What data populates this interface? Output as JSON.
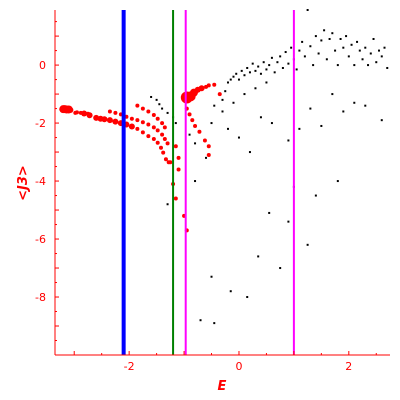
{
  "chart_data": {
    "type": "scatter",
    "title": "",
    "xlabel": "E",
    "ylabel": "<J3>",
    "xlim": [
      -3.35,
      2.75
    ],
    "ylim": [
      -10,
      1.9
    ],
    "x_ticks": [
      -2,
      0,
      2
    ],
    "y_ticks": [
      0,
      -2,
      -4,
      -6,
      -8
    ],
    "x_tick_labels": [
      "-2",
      "0",
      "2"
    ],
    "y_tick_labels": [
      "0",
      "-2",
      "-4",
      "-6",
      "-8"
    ],
    "grid": false,
    "axes_color": "#ff0000",
    "vertical_lines": [
      {
        "x": -2.1,
        "color": "#0000ff"
      },
      {
        "x": -1.2,
        "color": "#008000"
      },
      {
        "x": -0.97,
        "color": "#ff00ff"
      },
      {
        "x": 1.0,
        "color": "#ff00ff"
      }
    ],
    "series": [
      {
        "color": "#ff0000",
        "points": [
          [
            -3.2,
            -1.52,
            4
          ],
          [
            -3.17,
            -1.52,
            4
          ],
          [
            -3.14,
            -1.53,
            4
          ],
          [
            -3.1,
            -1.53,
            4
          ],
          [
            -3.07,
            -1.55,
            3
          ],
          [
            -2.98,
            -1.65,
            2
          ],
          [
            -2.95,
            -1.63,
            2
          ],
          [
            -2.88,
            -1.65,
            2
          ],
          [
            -2.82,
            -1.67,
            3
          ],
          [
            -2.75,
            -1.68,
            2
          ],
          [
            -2.72,
            -1.73,
            3
          ],
          [
            -2.6,
            -1.82,
            3
          ],
          [
            -2.52,
            -1.85,
            3
          ],
          [
            -2.45,
            -1.87,
            3
          ],
          [
            -2.35,
            -1.9,
            3
          ],
          [
            -2.25,
            -1.95,
            3
          ],
          [
            -2.15,
            -2.0,
            3
          ],
          [
            -2.05,
            -2.05,
            3
          ],
          [
            -1.95,
            -2.12,
            3
          ],
          [
            -1.85,
            -2.2,
            2
          ],
          [
            -1.75,
            -2.32,
            2
          ],
          [
            -1.65,
            -2.45,
            2
          ],
          [
            -1.55,
            -2.55,
            2
          ],
          [
            -1.48,
            -2.68,
            2
          ],
          [
            -1.42,
            -2.85,
            2
          ],
          [
            -1.38,
            -3.02,
            2
          ],
          [
            -1.33,
            -3.25,
            2
          ],
          [
            -1.28,
            -3.35,
            2
          ],
          [
            -1.25,
            -3.35,
            2
          ],
          [
            -2.35,
            -1.6,
            2
          ],
          [
            -2.25,
            -1.65,
            2
          ],
          [
            -2.15,
            -1.7,
            2
          ],
          [
            -2.05,
            -1.78,
            2
          ],
          [
            -1.95,
            -1.85,
            2
          ],
          [
            -1.85,
            -1.9,
            2
          ],
          [
            -1.75,
            -1.97,
            2
          ],
          [
            -1.65,
            -2.05,
            2
          ],
          [
            -1.55,
            -2.15,
            2
          ],
          [
            -1.48,
            -2.25,
            2
          ],
          [
            -1.4,
            -2.4,
            2
          ],
          [
            -1.35,
            -2.55,
            2
          ],
          [
            -1.3,
            -2.7,
            2
          ],
          [
            -1.85,
            -1.4,
            2
          ],
          [
            -1.75,
            -1.5,
            2
          ],
          [
            -1.65,
            -1.6,
            2
          ],
          [
            -1.55,
            -1.72,
            2
          ],
          [
            -1.48,
            -1.85,
            2
          ],
          [
            -1.4,
            -2.0,
            2
          ],
          [
            -1.35,
            -2.15,
            2
          ],
          [
            -0.95,
            -1.12,
            6
          ],
          [
            -0.88,
            -1.08,
            5
          ],
          [
            -0.82,
            -0.95,
            4
          ],
          [
            -0.75,
            -0.85,
            3
          ],
          [
            -0.68,
            -0.8,
            3
          ],
          [
            -0.6,
            -0.75,
            2
          ],
          [
            -0.55,
            -0.7,
            2
          ],
          [
            -0.45,
            -0.68,
            2
          ],
          [
            -0.95,
            -1.5,
            2
          ],
          [
            -0.9,
            -1.7,
            2
          ],
          [
            -0.85,
            -1.9,
            2
          ],
          [
            -0.8,
            -2.1,
            2
          ],
          [
            -0.72,
            -2.3,
            2
          ],
          [
            -0.62,
            -2.6,
            2
          ],
          [
            -0.55,
            -2.8,
            2
          ],
          [
            -0.55,
            -3.1,
            2
          ],
          [
            -1.15,
            -2.8,
            2
          ],
          [
            -1.1,
            -3.2,
            2
          ],
          [
            -1.1,
            -3.6,
            2
          ],
          [
            -1.2,
            -4.1,
            2
          ],
          [
            -1.15,
            -4.6,
            2
          ],
          [
            -1.0,
            -5.2,
            2
          ],
          [
            -0.95,
            -5.7,
            2
          ],
          [
            -0.35,
            -1.0,
            2
          ]
        ]
      },
      {
        "color": "#000000",
        "points": [
          [
            -1.6,
            -1.1
          ],
          [
            -1.5,
            -1.2
          ],
          [
            -1.45,
            -1.35
          ],
          [
            -1.4,
            -1.5
          ],
          [
            -1.3,
            -1.65
          ],
          [
            -1.2,
            -1.8
          ],
          [
            -1.15,
            -2.0
          ],
          [
            -0.9,
            -2.4
          ],
          [
            -0.8,
            -2.7
          ],
          [
            -0.6,
            -3.2
          ],
          [
            -0.5,
            -2.0
          ],
          [
            -0.45,
            -1.4
          ],
          [
            -0.3,
            -1.2
          ],
          [
            -0.25,
            -0.9
          ],
          [
            -0.2,
            -0.6
          ],
          [
            -0.15,
            -0.5
          ],
          [
            -0.1,
            -0.4
          ],
          [
            -0.05,
            -0.3
          ],
          [
            0.0,
            -0.5
          ],
          [
            0.05,
            -0.2
          ],
          [
            0.1,
            -0.35
          ],
          [
            0.15,
            -0.1
          ],
          [
            0.2,
            -0.25
          ],
          [
            0.25,
            0.05
          ],
          [
            0.3,
            -0.2
          ],
          [
            0.35,
            -0.05
          ],
          [
            0.4,
            -0.3
          ],
          [
            0.45,
            0.1
          ],
          [
            0.5,
            -0.15
          ],
          [
            0.55,
            0.0
          ],
          [
            0.6,
            0.25
          ],
          [
            0.65,
            -0.25
          ],
          [
            0.7,
            0.1
          ],
          [
            0.75,
            0.3
          ],
          [
            0.8,
            -0.1
          ],
          [
            0.85,
            0.45
          ],
          [
            0.9,
            0.05
          ],
          [
            0.95,
            0.6
          ],
          [
            1.0,
            0.2
          ],
          [
            1.05,
            -0.15
          ],
          [
            1.1,
            0.5
          ],
          [
            1.15,
            0.8
          ],
          [
            1.2,
            0.3
          ],
          [
            1.25,
            1.9
          ],
          [
            1.3,
            0.65
          ],
          [
            1.35,
            0.0
          ],
          [
            1.4,
            1.0
          ],
          [
            1.45,
            0.4
          ],
          [
            1.5,
            0.85
          ],
          [
            1.55,
            1.2
          ],
          [
            1.6,
            0.2
          ],
          [
            1.65,
            0.9
          ],
          [
            1.7,
            1.1
          ],
          [
            1.75,
            0.5
          ],
          [
            1.8,
            0.0
          ],
          [
            1.85,
            0.9
          ],
          [
            1.9,
            0.6
          ],
          [
            1.95,
            1.0
          ],
          [
            2.0,
            0.3
          ],
          [
            2.05,
            0.7
          ],
          [
            2.1,
            0.0
          ],
          [
            2.15,
            0.8
          ],
          [
            2.2,
            0.5
          ],
          [
            2.25,
            0.2
          ],
          [
            2.3,
            0.6
          ],
          [
            2.35,
            0.0
          ],
          [
            2.4,
            0.4
          ],
          [
            2.45,
            0.9
          ],
          [
            2.5,
            0.1
          ],
          [
            2.55,
            0.5
          ],
          [
            2.6,
            0.3
          ],
          [
            2.65,
            0.6
          ],
          [
            2.7,
            -0.1
          ],
          [
            0.3,
            -0.8
          ],
          [
            0.5,
            -0.6
          ],
          [
            0.1,
            -1.0
          ],
          [
            -0.1,
            -1.3
          ],
          [
            -0.3,
            -1.6
          ],
          [
            -0.2,
            -2.2
          ],
          [
            0.0,
            -2.5
          ],
          [
            0.2,
            -3.0
          ],
          [
            0.4,
            -1.8
          ],
          [
            0.6,
            -2.0
          ],
          [
            0.9,
            -2.6
          ],
          [
            1.1,
            -2.2
          ],
          [
            1.3,
            -1.5
          ],
          [
            1.5,
            -2.1
          ],
          [
            1.7,
            -1.0
          ],
          [
            1.9,
            -1.6
          ],
          [
            2.1,
            -1.3
          ],
          [
            2.3,
            -1.4
          ],
          [
            2.6,
            -1.9
          ],
          [
            1.0,
            -4.2
          ],
          [
            1.4,
            -4.5
          ],
          [
            1.8,
            -4.0
          ],
          [
            0.55,
            -5.1
          ],
          [
            0.9,
            -5.4
          ],
          [
            1.25,
            -6.2
          ],
          [
            0.35,
            -6.6
          ],
          [
            0.75,
            -7.0
          ],
          [
            -0.5,
            -7.3
          ],
          [
            -0.15,
            -7.8
          ],
          [
            0.15,
            -8.0
          ],
          [
            -0.7,
            -8.8
          ],
          [
            -0.45,
            -8.9
          ],
          [
            -1.3,
            -4.8
          ],
          [
            -0.8,
            -4.0
          ]
        ]
      }
    ]
  }
}
